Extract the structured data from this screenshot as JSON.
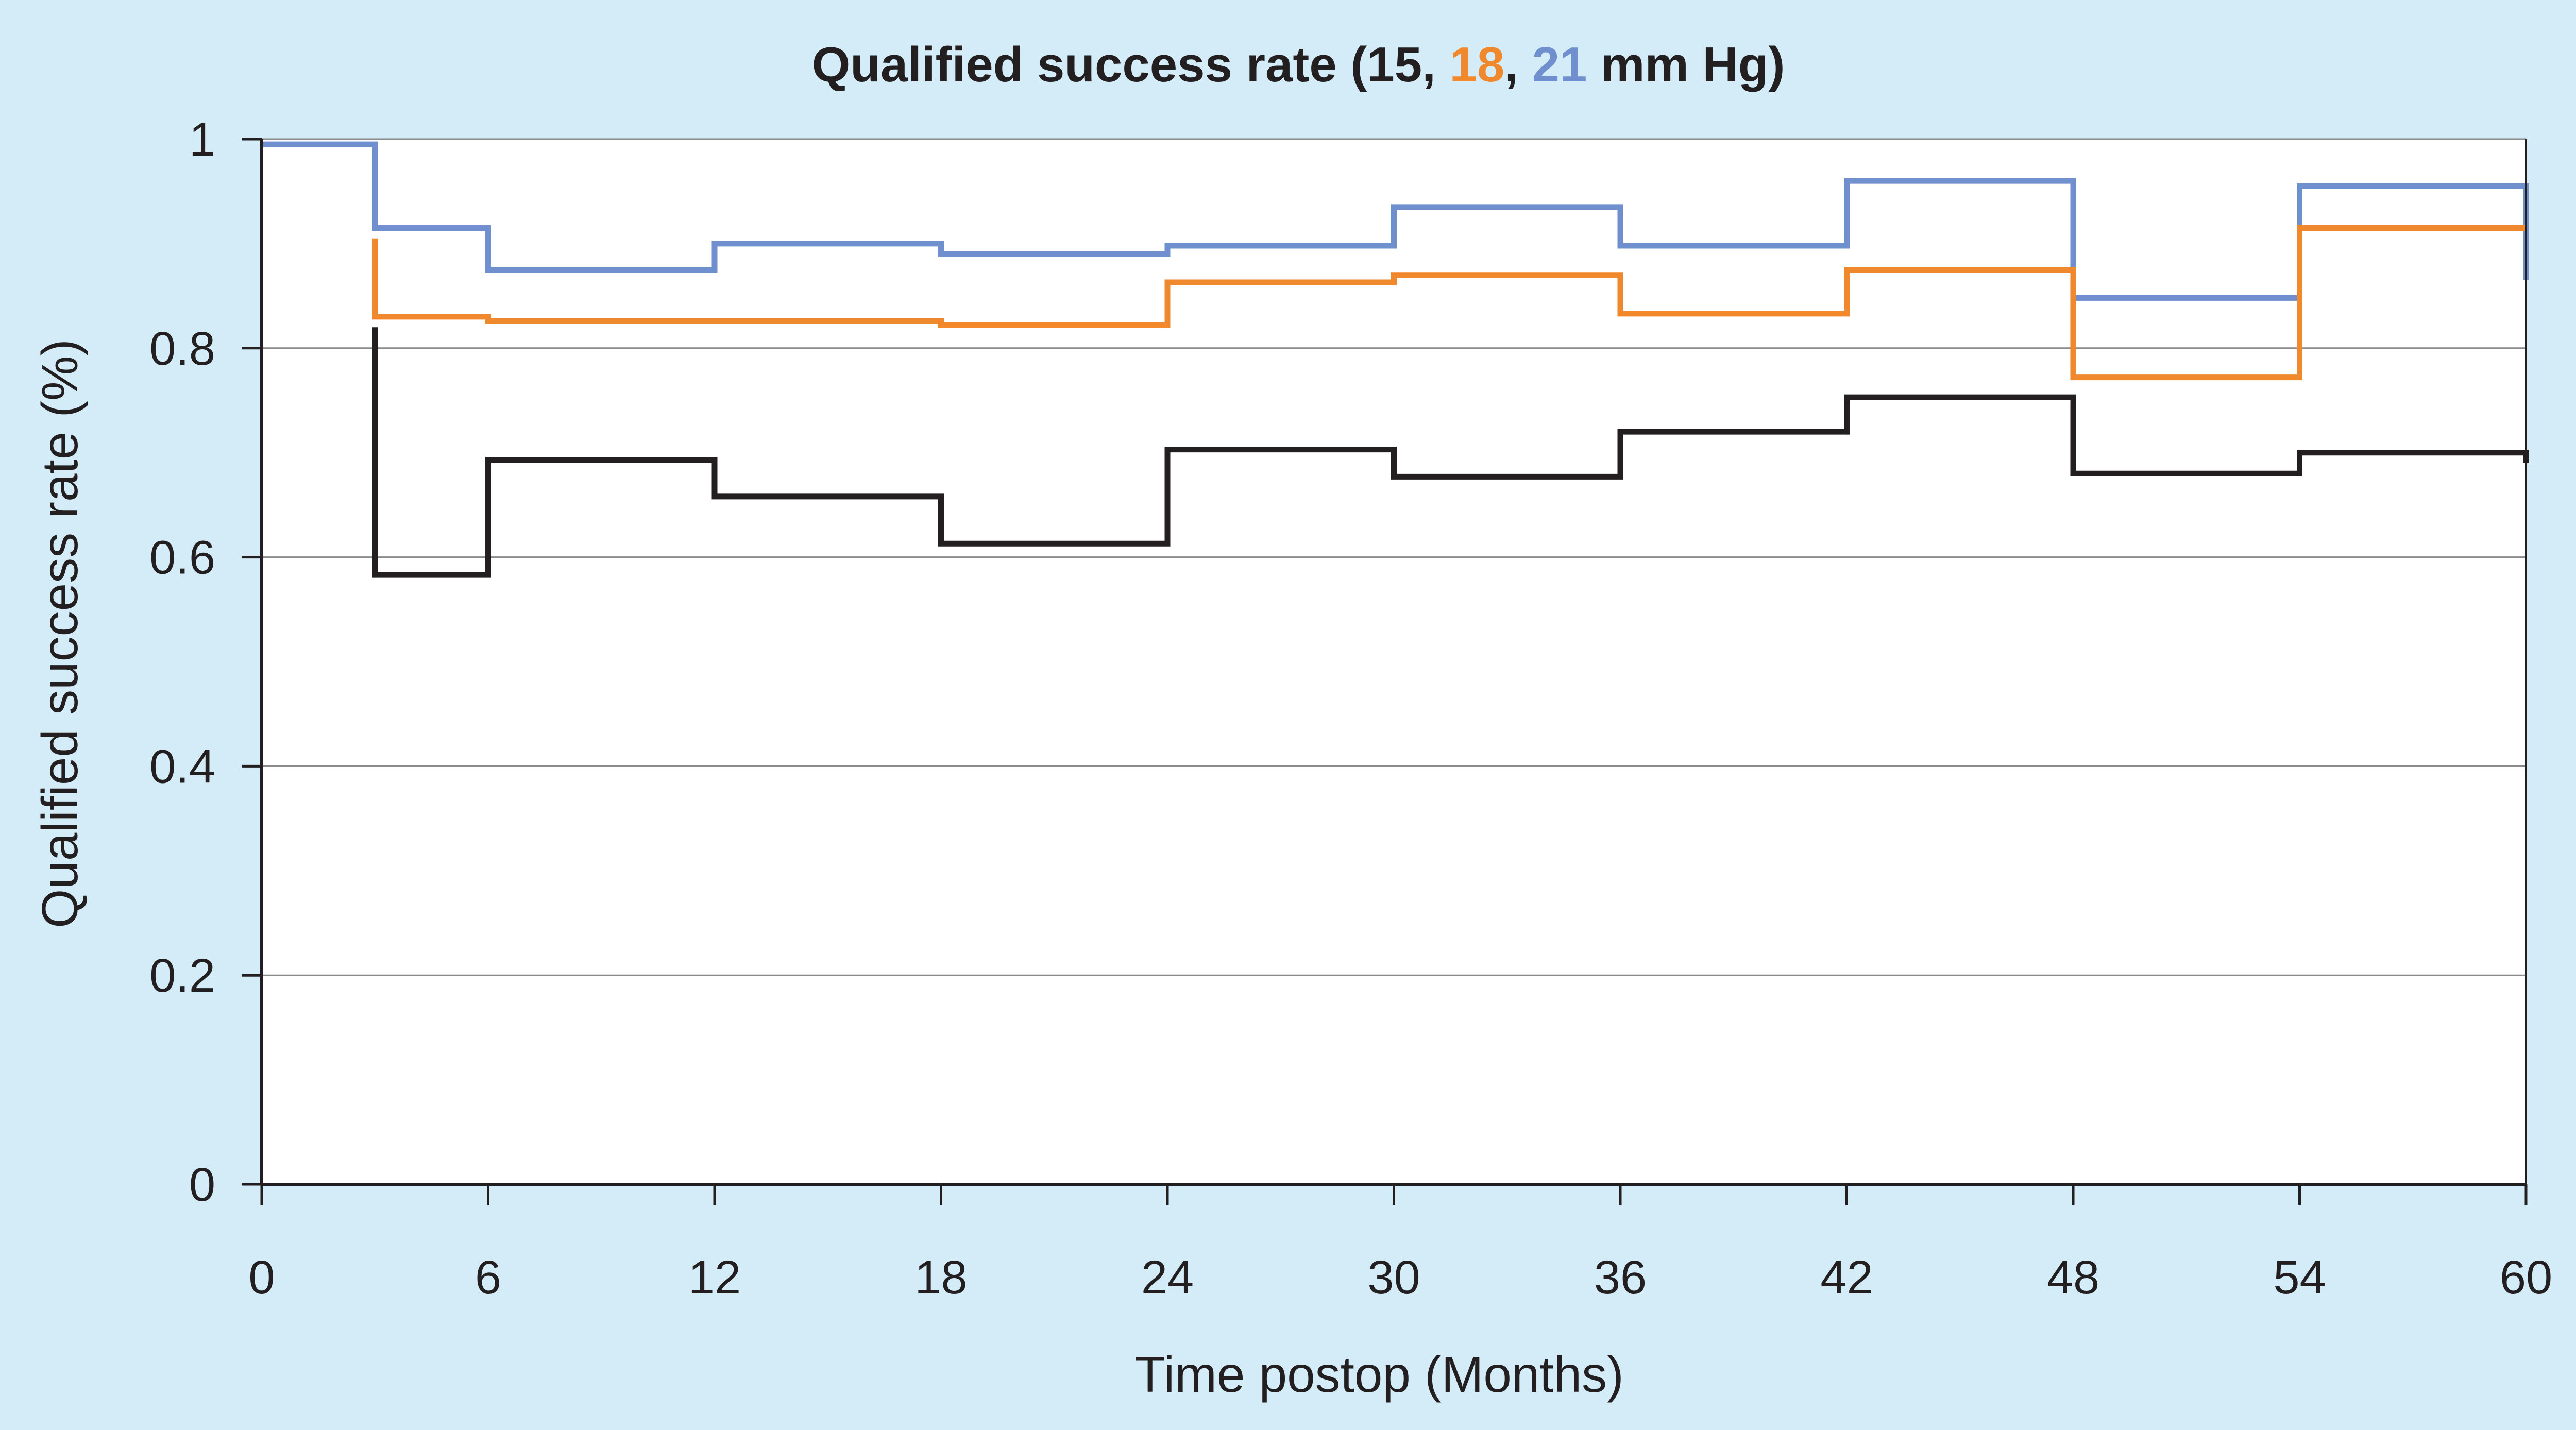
{
  "chart_data": {
    "type": "line",
    "step": true,
    "title": {
      "prefix": "Qualified success rate (",
      "parts": [
        {
          "text": "15",
          "color": "#231f20"
        },
        {
          "text": ", ",
          "color": "#231f20"
        },
        {
          "text": "18",
          "color": "#f0892d"
        },
        {
          "text": ", ",
          "color": "#231f20"
        },
        {
          "text": "21",
          "color": "#6f8fce"
        }
      ],
      "suffix": " mm Hg)"
    },
    "xlabel": "Time postop (Months)",
    "ylabel": "Qualified success rate (%)",
    "xlim": [
      0,
      60
    ],
    "ylim": [
      0,
      1
    ],
    "xticks": [
      0,
      6,
      12,
      18,
      24,
      30,
      36,
      42,
      48,
      54,
      60
    ],
    "yticks": [
      0,
      0.2,
      0.4,
      0.6,
      0.8,
      1
    ],
    "ytick_labels": [
      "0",
      "0.2",
      "0.4",
      "0.6",
      "0.8",
      "1"
    ],
    "grid": "horizontal",
    "legend": "none",
    "series": [
      {
        "color": "#6f8fce",
        "x": [
          0,
          3,
          6,
          12,
          18,
          24,
          30,
          36,
          42,
          48,
          54,
          60
        ],
        "y": [
          0.995,
          0.915,
          0.875,
          0.9,
          0.89,
          0.898,
          0.935,
          0.898,
          0.96,
          0.848,
          0.955,
          0.865
        ]
      },
      {
        "color": "#f0892d",
        "x": [
          3,
          3,
          6,
          18,
          24,
          30,
          36,
          42,
          48,
          54,
          60
        ],
        "y": [
          0.905,
          0.83,
          0.826,
          0.822,
          0.863,
          0.87,
          0.833,
          0.875,
          0.772,
          0.915,
          0.915
        ]
      },
      {
        "color": "#231f20",
        "x": [
          3,
          3,
          6,
          12,
          18,
          24,
          30,
          36,
          42,
          48,
          54,
          60
        ],
        "y": [
          0.82,
          0.583,
          0.693,
          0.658,
          0.613,
          0.703,
          0.677,
          0.72,
          0.753,
          0.68,
          0.7,
          0.69
        ]
      }
    ]
  }
}
